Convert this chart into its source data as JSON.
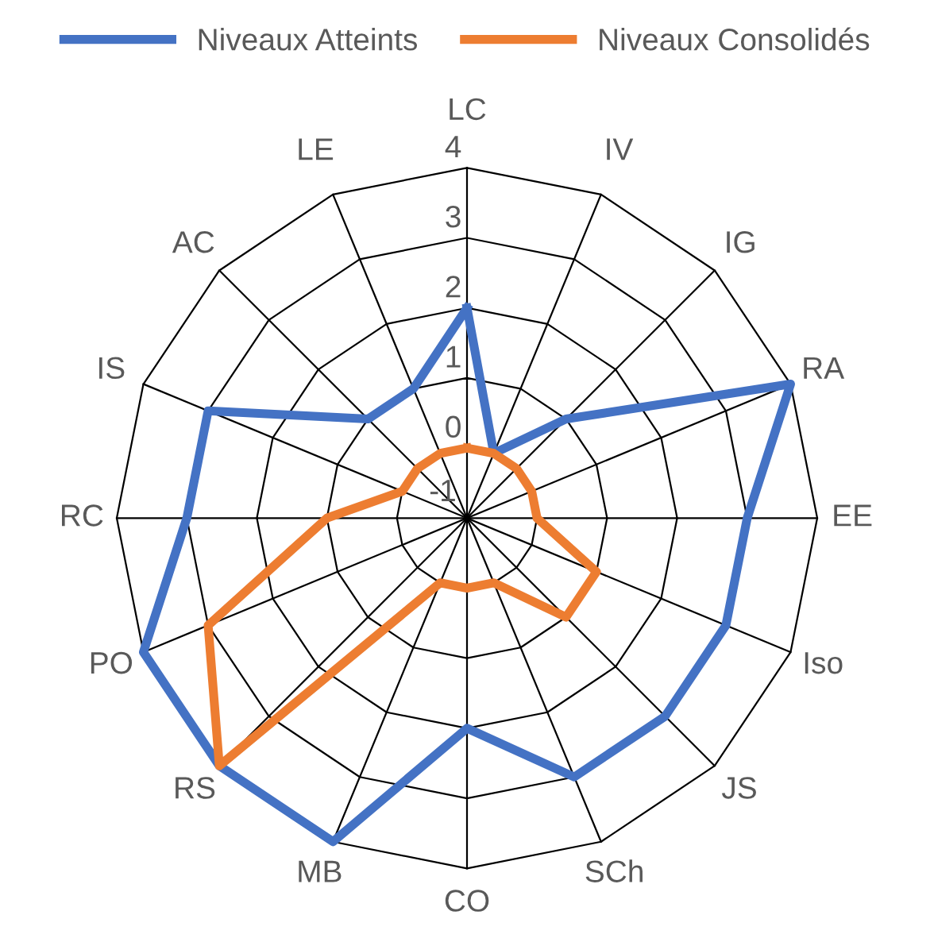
{
  "chart_data": {
    "type": "radar",
    "categories": [
      "LC",
      "IV",
      "IG",
      "RA",
      "EE",
      "Iso",
      "JS",
      "SCh",
      "CO",
      "MB",
      "RS",
      "PO",
      "RC",
      "IS",
      "AC",
      "LE"
    ],
    "series": [
      {
        "name": "Niveaux Atteints",
        "color": "#4472c4",
        "values": [
          2,
          0,
          1,
          4,
          3,
          3,
          3,
          3,
          2,
          4,
          4,
          4,
          3,
          3,
          1,
          1
        ]
      },
      {
        "name": "Niveaux Consolidés",
        "color": "#ed7d31",
        "values": [
          0,
          0,
          0,
          0,
          0,
          1,
          1,
          0,
          0,
          0,
          4,
          3,
          1,
          0,
          0,
          0
        ]
      }
    ],
    "ylim": [
      -1,
      4
    ],
    "yticks": [
      -1,
      0,
      1,
      2,
      3,
      4
    ],
    "grid": true,
    "legend": "top",
    "marker": "none",
    "line_style": "solid"
  }
}
